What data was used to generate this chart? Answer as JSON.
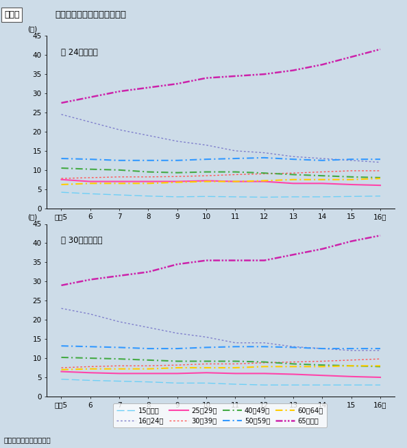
{
  "title_box": "第１図",
  "title_text": "年齢層別死者数の割合の推移",
  "background_color": "#cddce8",
  "years": [
    5,
    6,
    7,
    8,
    9,
    10,
    11,
    12,
    13,
    14,
    15,
    16
  ],
  "chart1_label": "Ⓞ 24時間死者",
  "chart2_label": "Ⓞ 30日以内死者",
  "chart1": {
    "age_under15": [
      4.2,
      3.8,
      3.5,
      3.2,
      3.0,
      3.1,
      3.0,
      2.9,
      3.0,
      3.0,
      3.1,
      3.2
    ],
    "age_16_24": [
      24.5,
      22.5,
      20.5,
      19.0,
      17.5,
      16.5,
      15.0,
      14.5,
      13.5,
      13.0,
      12.5,
      12.0
    ],
    "age_25_29": [
      7.5,
      7.0,
      7.0,
      7.0,
      7.0,
      7.2,
      7.0,
      7.0,
      6.5,
      6.5,
      6.2,
      6.0
    ],
    "age_30_39": [
      7.8,
      8.0,
      8.2,
      8.2,
      8.3,
      8.5,
      8.8,
      9.0,
      9.2,
      9.5,
      9.8,
      9.8
    ],
    "age_40_49": [
      10.5,
      10.2,
      10.0,
      9.5,
      9.3,
      9.5,
      9.5,
      9.2,
      8.8,
      8.5,
      8.2,
      8.0
    ],
    "age_50_59": [
      13.0,
      12.8,
      12.5,
      12.5,
      12.5,
      12.8,
      13.0,
      13.2,
      12.8,
      12.5,
      12.8,
      12.8
    ],
    "age_60_64": [
      6.2,
      6.5,
      6.5,
      6.5,
      6.8,
      7.0,
      7.0,
      7.2,
      7.5,
      7.5,
      7.5,
      7.8
    ],
    "age_65plus": [
      27.5,
      29.0,
      30.5,
      31.5,
      32.5,
      34.0,
      34.5,
      35.0,
      36.0,
      37.5,
      39.5,
      41.5
    ]
  },
  "chart2": {
    "age_under15": [
      4.5,
      4.2,
      4.0,
      3.8,
      3.5,
      3.5,
      3.2,
      3.0,
      3.0,
      3.0,
      3.0,
      3.0
    ],
    "age_16_24": [
      23.0,
      21.5,
      19.5,
      18.0,
      16.5,
      15.5,
      14.0,
      14.0,
      13.0,
      12.5,
      12.0,
      12.0
    ],
    "age_25_29": [
      6.5,
      6.2,
      6.0,
      6.0,
      6.0,
      6.2,
      6.0,
      6.0,
      5.8,
      5.5,
      5.2,
      5.0
    ],
    "age_30_39": [
      7.5,
      7.8,
      8.0,
      8.0,
      8.2,
      8.5,
      8.5,
      8.8,
      9.0,
      9.2,
      9.5,
      9.8
    ],
    "age_40_49": [
      10.2,
      10.0,
      9.8,
      9.5,
      9.2,
      9.2,
      9.2,
      9.0,
      8.5,
      8.2,
      8.0,
      7.8
    ],
    "age_50_59": [
      13.2,
      13.0,
      12.8,
      12.5,
      12.5,
      12.8,
      13.0,
      13.0,
      12.8,
      12.5,
      12.5,
      12.5
    ],
    "age_60_64": [
      7.0,
      7.2,
      7.2,
      7.2,
      7.5,
      7.5,
      7.5,
      7.8,
      7.8,
      7.8,
      8.0,
      8.0
    ],
    "age_65plus": [
      29.0,
      30.5,
      31.5,
      32.5,
      34.5,
      35.5,
      35.5,
      35.5,
      37.0,
      38.5,
      40.5,
      42.0
    ]
  },
  "colors": {
    "age_under15": "#6ecff6",
    "age_16_24": "#7f7fcc",
    "age_25_29": "#ff44aa",
    "age_30_39": "#ff5555",
    "age_40_49": "#44aa44",
    "age_50_59": "#3399ff",
    "age_60_64": "#ffcc00",
    "age_65plus": "#cc22aa"
  },
  "legend_labels": {
    "age_under15": "15歳以下",
    "age_16_24": "16～24歳",
    "age_25_29": "25～29歳",
    "age_30_39": "30～39歳",
    "age_40_49": "40～49歳",
    "age_50_59": "50～59歳",
    "age_60_64": "60～64歳",
    "age_65plus": "65歳以上"
  },
  "note": "注　警察庁資料による。"
}
